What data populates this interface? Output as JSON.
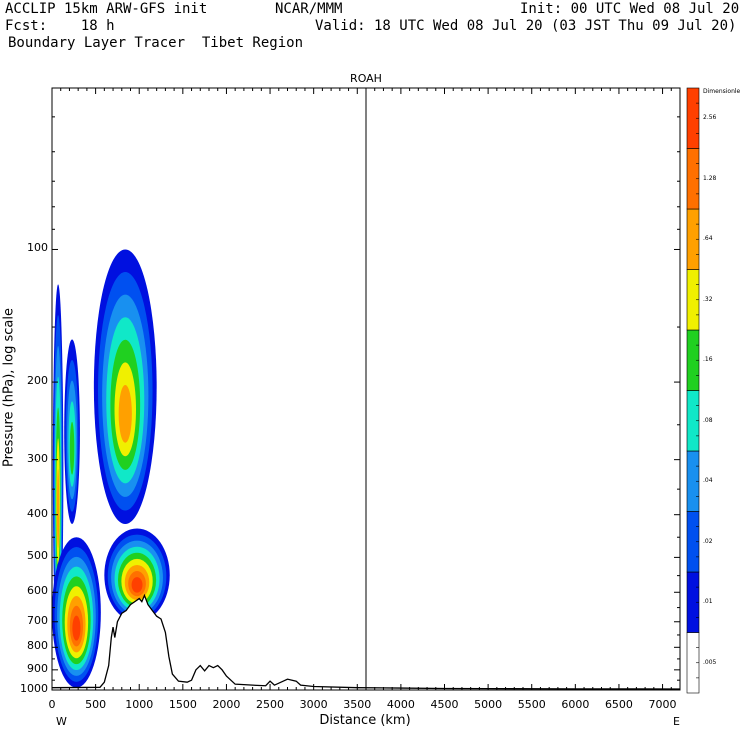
{
  "header": {
    "line1_left": "ACCLIP 15km ARW-GFS init",
    "line1_mid": "NCAR/MMM",
    "line1_right": "Init: 00 UTC Wed 08 Jul 20",
    "line2_left": "Fcst:    18 h",
    "line2_right": "Valid: 18 UTC Wed 08 Jul 20 (03 JST Thu 09 Jul 20)",
    "line3_left": "Boundary Layer Tracer  Tibet Region"
  },
  "chart_data": {
    "type": "heatmap",
    "title": "ROAH",
    "xlabel": "Distance (km)",
    "ylabel": "Pressure (hPa), log scale",
    "x_range": [
      0,
      7200
    ],
    "y_range_hpa": [
      1000,
      43
    ],
    "y_scale": "log",
    "x_ticks": [
      "0",
      "500",
      "1000",
      "1500",
      "2000",
      "2500",
      "3000",
      "3500",
      "4000",
      "4500",
      "5000",
      "5500",
      "6000",
      "6500",
      "7000"
    ],
    "y_ticks": [
      "100",
      "200",
      "300",
      "400",
      "500",
      "600",
      "700",
      "800",
      "900",
      "1000"
    ],
    "x_end_labels": {
      "left": "W",
      "right": "E"
    },
    "vertical_marker_km": 3600,
    "colorbar": {
      "title": "Dimensionless",
      "levels": [
        ".005",
        ".01",
        ".02",
        ".04",
        ".08",
        ".16",
        ".32",
        ".64",
        "1.28",
        "2.56"
      ],
      "colors": [
        "#ffffff",
        "#0010e0",
        "#0050f0",
        "#1890f0",
        "#10e8c8",
        "#20d020",
        "#f0f000",
        "#ffa000",
        "#ff7000",
        "#ff4000"
      ]
    },
    "terrain_km_hpa": [
      [
        0,
        988
      ],
      [
        550,
        986
      ],
      [
        600,
        960
      ],
      [
        650,
        880
      ],
      [
        680,
        760
      ],
      [
        700,
        720
      ],
      [
        720,
        760
      ],
      [
        750,
        700
      ],
      [
        800,
        670
      ],
      [
        850,
        660
      ],
      [
        900,
        640
      ],
      [
        950,
        630
      ],
      [
        1000,
        620
      ],
      [
        1030,
        630
      ],
      [
        1060,
        610
      ],
      [
        1100,
        640
      ],
      [
        1150,
        660
      ],
      [
        1200,
        680
      ],
      [
        1250,
        690
      ],
      [
        1300,
        740
      ],
      [
        1340,
        840
      ],
      [
        1380,
        920
      ],
      [
        1450,
        955
      ],
      [
        1550,
        960
      ],
      [
        1600,
        950
      ],
      [
        1650,
        900
      ],
      [
        1700,
        880
      ],
      [
        1750,
        905
      ],
      [
        1800,
        880
      ],
      [
        1850,
        890
      ],
      [
        1900,
        880
      ],
      [
        1950,
        900
      ],
      [
        2000,
        930
      ],
      [
        2100,
        970
      ],
      [
        2300,
        975
      ],
      [
        2450,
        978
      ],
      [
        2500,
        955
      ],
      [
        2550,
        975
      ],
      [
        2650,
        955
      ],
      [
        2700,
        945
      ],
      [
        2800,
        955
      ],
      [
        2850,
        975
      ],
      [
        3000,
        982
      ],
      [
        3500,
        988
      ],
      [
        4000,
        990
      ],
      [
        4500,
        992
      ],
      [
        5000,
        993
      ],
      [
        6000,
        994
      ],
      [
        7200,
        995
      ]
    ],
    "plumes": [
      {
        "name": "west-column-a",
        "x_km": [
          10,
          130
        ],
        "top_hpa": 120,
        "bottom_hpa": 850,
        "peak": 0.64
      },
      {
        "name": "west-column-b",
        "x_km": [
          140,
          320
        ],
        "top_hpa": 160,
        "bottom_hpa": 420,
        "peak": 0.16
      },
      {
        "name": "central-column",
        "x_km": [
          480,
          1200
        ],
        "top_hpa": 100,
        "bottom_hpa": 420,
        "peak": 0.64
      },
      {
        "name": "boundary-layer-west",
        "x_km": [
          0,
          560
        ],
        "top_hpa": 450,
        "bottom_hpa": 988,
        "peak": 2.56
      },
      {
        "name": "boundary-layer-central",
        "x_km": [
          600,
          1350
        ],
        "top_hpa": 430,
        "bottom_hpa": 700,
        "peak": 2.56
      }
    ]
  }
}
